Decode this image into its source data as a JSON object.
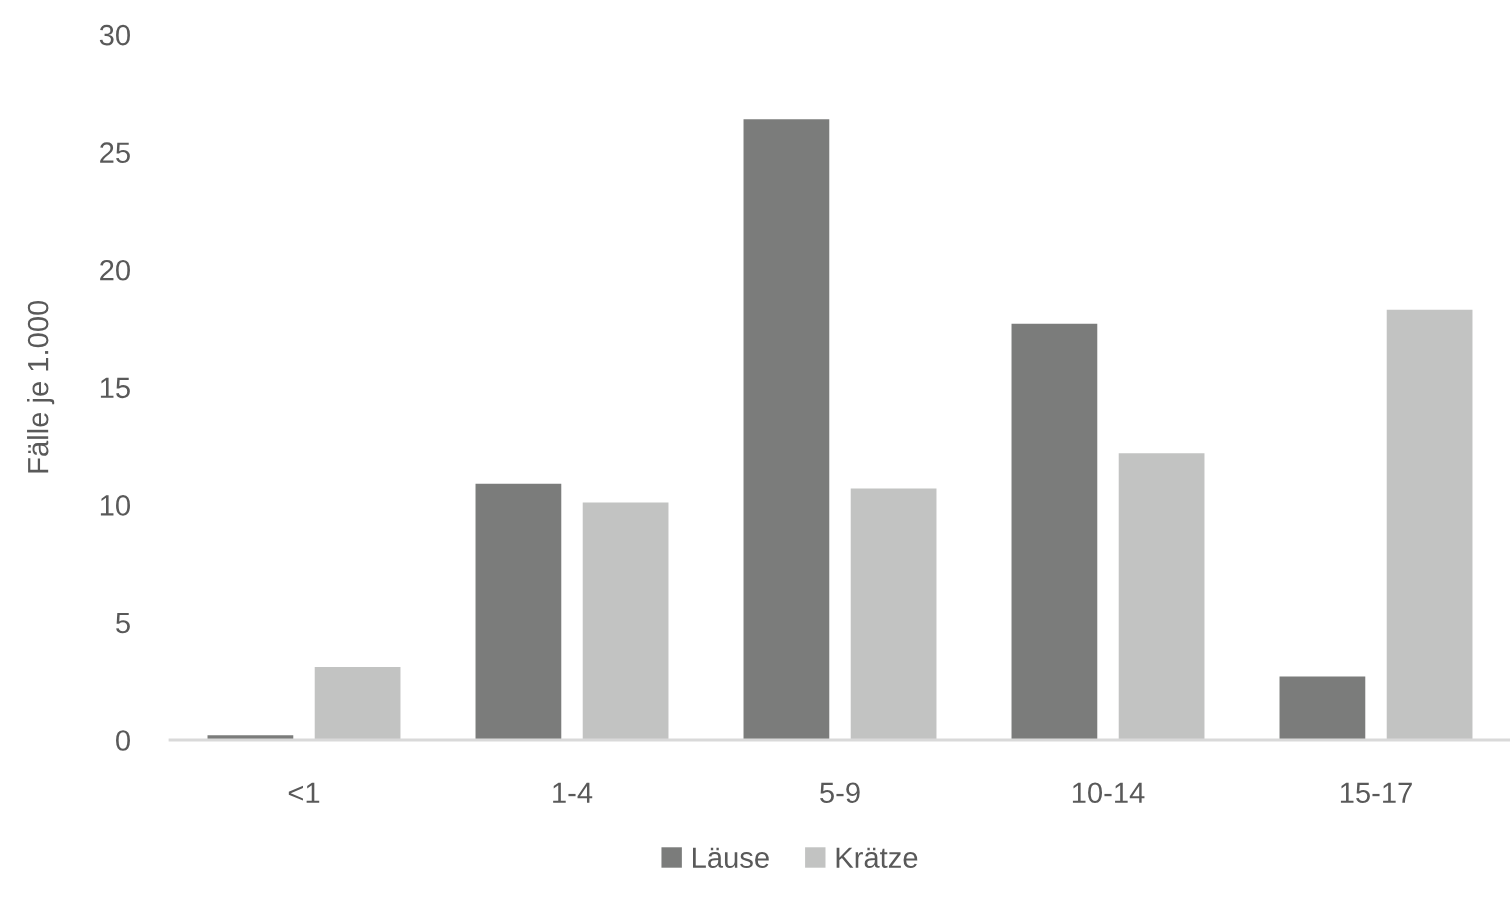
{
  "chart_data": {
    "type": "bar",
    "ylabel": "Fälle je 1.000",
    "categories": [
      "<1",
      "1-4",
      "5-9",
      "10-14",
      "15-17"
    ],
    "series": [
      {
        "name": "Läuse",
        "color": "#7b7c7b",
        "values": [
          0.2,
          10.9,
          26.4,
          17.7,
          2.7
        ]
      },
      {
        "name": "Krätze",
        "color": "#c2c3c2",
        "values": [
          3.1,
          10.1,
          10.7,
          12.2,
          18.3
        ]
      }
    ],
    "ylim": [
      0,
      30
    ],
    "yticks": [
      0,
      5,
      10,
      15,
      20,
      25,
      30
    ],
    "grid": false,
    "legend": "bottom"
  }
}
